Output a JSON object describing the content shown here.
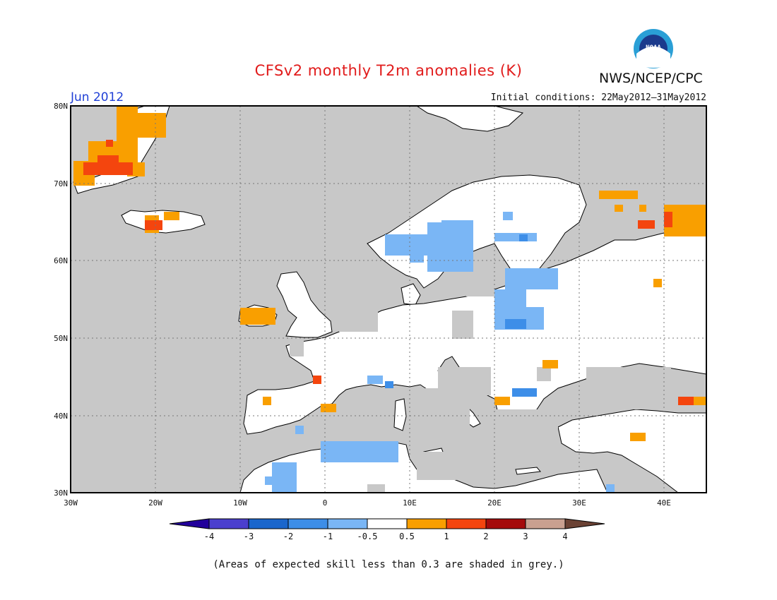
{
  "title": "CFSv2 monthly T2m anomalies (K)",
  "agency": "NWS/NCEP/CPC",
  "logo_text": "NOAA",
  "valid_month": "Jun 2012",
  "initial_conditions": "Initial conditions: 22May2012–31May2012",
  "footnote": "(Areas of expected skill less than 0.3 are shaded in grey.)",
  "map": {
    "lon_range": [
      -30,
      45
    ],
    "lat_range": [
      30,
      80
    ],
    "lon_ticks": [
      "30W",
      "20W",
      "10W",
      "0",
      "10E",
      "20E",
      "30E",
      "40E"
    ],
    "lat_ticks": [
      "30N",
      "40N",
      "50N",
      "60N",
      "70N",
      "80N"
    ],
    "gridlines": true,
    "ocean_color": "#c8c8c8",
    "land_color": "#ffffff"
  },
  "colorbar": {
    "labels": [
      "-4",
      "-3",
      "-2",
      "-1",
      "-0.5",
      "0.5",
      "1",
      "2",
      "3",
      "4"
    ],
    "colors": [
      "#22009b",
      "#4b3fce",
      "#1a66cc",
      "#3d8ee8",
      "#7ab6f5",
      "#ffffff",
      "#f99f00",
      "#f4450e",
      "#a50b0b",
      "#c9a090",
      "#6b4234"
    ]
  },
  "anomaly_regions": [
    {
      "label": "Greenland east coast",
      "category": "0.5 to 1",
      "color": "#f99f00",
      "lon": -24,
      "lat": 75
    },
    {
      "label": "Greenland southeast",
      "category": "1 to 2",
      "color": "#f4450e",
      "lon": -26,
      "lat": 71
    },
    {
      "label": "Iceland",
      "category": "1 to 2",
      "color": "#f4450e",
      "lon": -20,
      "lat": 65
    },
    {
      "label": "Ireland",
      "category": "0.5 to 1",
      "color": "#f99f00",
      "lon": -8,
      "lat": 53
    },
    {
      "label": "Scandinavia",
      "category": "-1 to -0.5",
      "color": "#7ab6f5",
      "lon": 15,
      "lat": 62
    },
    {
      "label": "Baltic",
      "category": "-1 to -0.5",
      "color": "#7ab6f5",
      "lon": 24,
      "lat": 53
    },
    {
      "label": "Northwest Russia",
      "category": "0.5 to 1",
      "color": "#f99f00",
      "lon": 42,
      "lat": 66
    },
    {
      "label": "North Africa",
      "category": "-1 to -0.5",
      "color": "#7ab6f5",
      "lon": 3,
      "lat": 35
    }
  ]
}
